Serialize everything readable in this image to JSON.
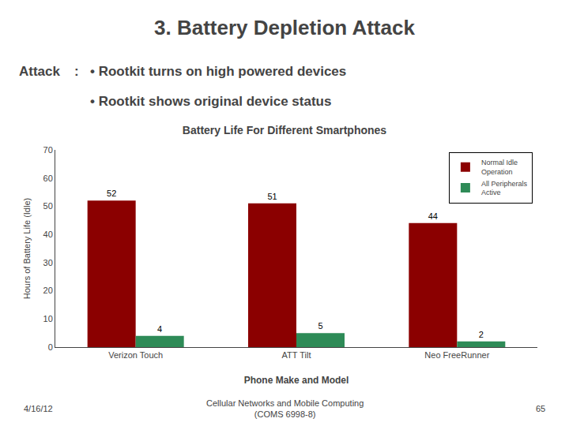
{
  "chart_data": {
    "type": "bar",
    "title": "Battery Life For Different Smartphones",
    "xlabel": "Phone Make and Model",
    "ylabel": "Hours of Battery Life (Idle)",
    "categories": [
      "Verizon Touch",
      "ATT Tilt",
      "Neo FreeRunner"
    ],
    "series": [
      {
        "name": "Normal Idle\nOperation",
        "color": "#8B0000",
        "values": [
          52,
          51,
          44
        ]
      },
      {
        "name": "All Peripherals\nActive",
        "color": "#2E8B57",
        "values": [
          4,
          5,
          2
        ]
      }
    ],
    "ylim": [
      0,
      70
    ],
    "yticks": [
      0,
      10,
      20,
      30,
      40,
      50,
      60,
      70
    ],
    "data_labels": true,
    "legend": "upper right",
    "grid": false,
    "annotations": [
      "3. Battery Depletion Attack",
      "Attack",
      ":",
      "• Rootkit turns on high powered devices",
      "• Rootkit shows original device status",
      "4/16/12",
      "Cellular Networks and Mobile Computing\n(COMS 6998-8)",
      "65"
    ]
  }
}
